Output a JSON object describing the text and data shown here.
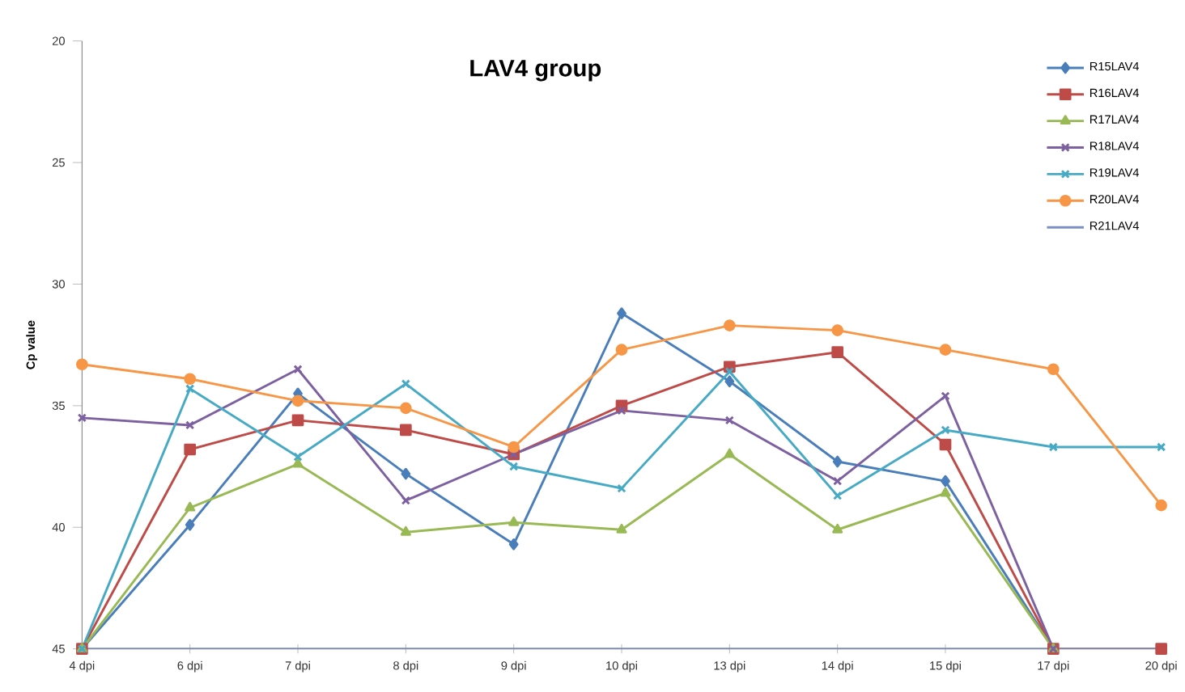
{
  "chart_data": {
    "type": "line",
    "title": "LAV4 group",
    "ylabel": "Cp value",
    "categories": [
      "4 dpi",
      "6 dpi",
      "7 dpi",
      "8 dpi",
      "9 dpi",
      "10 dpi",
      "13 dpi",
      "14 dpi",
      "15 dpi",
      "17 dpi",
      "20 dpi"
    ],
    "ylim": [
      45,
      20
    ],
    "yticks": [
      20,
      25,
      30,
      35,
      40,
      45
    ],
    "grid": false,
    "legend": "top right",
    "series": [
      {
        "name": "R15LAV4",
        "color": "#4a7ebb",
        "marker": "diamond",
        "values": [
          45,
          39.9,
          34.5,
          37.8,
          40.7,
          31.2,
          34.0,
          37.3,
          38.1,
          45,
          null
        ]
      },
      {
        "name": "R16LAV4",
        "color": "#be4b48",
        "marker": "square",
        "values": [
          45,
          36.8,
          35.6,
          36.0,
          37.0,
          35.0,
          33.4,
          32.8,
          36.6,
          45,
          45
        ]
      },
      {
        "name": "R17LAV4",
        "color": "#98b954",
        "marker": "triangle",
        "values": [
          45,
          39.2,
          37.4,
          40.2,
          39.8,
          40.1,
          37.0,
          40.1,
          38.6,
          45,
          null
        ]
      },
      {
        "name": "R18LAV4",
        "color": "#7d60a0",
        "marker": "cross",
        "values": [
          35.5,
          35.8,
          33.5,
          38.9,
          37.0,
          35.2,
          35.6,
          38.1,
          34.6,
          45,
          null
        ]
      },
      {
        "name": "R19LAV4",
        "color": "#46aac5",
        "marker": "cross",
        "values": [
          45,
          34.3,
          37.1,
          34.1,
          37.5,
          38.4,
          33.6,
          38.7,
          36.0,
          36.7,
          36.7
        ]
      },
      {
        "name": "R20LAV4",
        "color": "#f79646",
        "marker": "circle",
        "values": [
          33.3,
          33.9,
          34.8,
          35.1,
          36.7,
          32.7,
          31.7,
          31.9,
          32.7,
          33.5,
          39.1
        ]
      },
      {
        "name": "R21LAV4",
        "color": "#7b8fc4",
        "marker": "none",
        "values": [
          45,
          45,
          45,
          45,
          45,
          45,
          45,
          45,
          45,
          45,
          45
        ]
      }
    ]
  }
}
